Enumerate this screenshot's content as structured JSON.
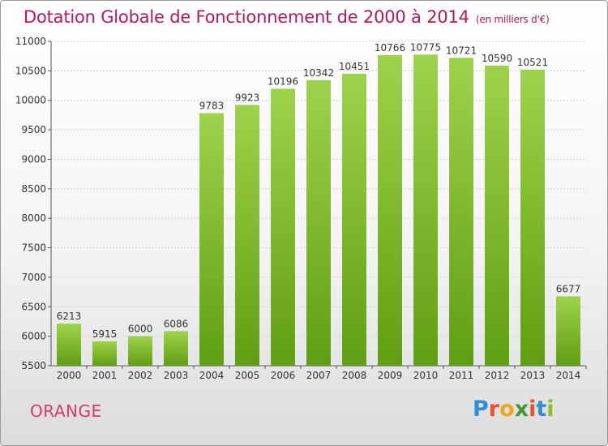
{
  "title": "Dotation Globale de Fonctionnement de 2000 à 2014",
  "subtitle": "(en milliers d'€)",
  "city": "ORANGE",
  "logo": {
    "text": "Proxiti",
    "letters": [
      "P",
      "r",
      "o",
      "x",
      "i",
      "t",
      "i"
    ],
    "colors": [
      "#2e8fd8",
      "#e8542a",
      "#f2a51c",
      "#3f9a3a",
      "#e8542a",
      "#2e8fd8",
      "#8bbf2a"
    ]
  },
  "colors": {
    "title": "#b0195e",
    "bar_light": "#9fd24c",
    "bar_dark": "#5f9e12",
    "grid": "#cfcfcf"
  },
  "chart_data": {
    "type": "bar",
    "title": "Dotation Globale de Fonctionnement de 2000 à 2014",
    "subtitle": "(en milliers d'€)",
    "xlabel": "",
    "ylabel": "",
    "categories": [
      "2000",
      "2001",
      "2002",
      "2003",
      "2004",
      "2005",
      "2006",
      "2007",
      "2008",
      "2009",
      "2010",
      "2011",
      "2012",
      "2013",
      "2014"
    ],
    "values": [
      6213,
      5915,
      6000,
      6086,
      9783,
      9923,
      10196,
      10342,
      10451,
      10766,
      10775,
      10721,
      10590,
      10521,
      6677
    ],
    "ylim": [
      5500,
      11000
    ],
    "yticks": [
      5500,
      6000,
      6500,
      7000,
      7500,
      8000,
      8500,
      9000,
      9500,
      10000,
      10500,
      11000
    ],
    "grid": true,
    "legend": "none"
  }
}
